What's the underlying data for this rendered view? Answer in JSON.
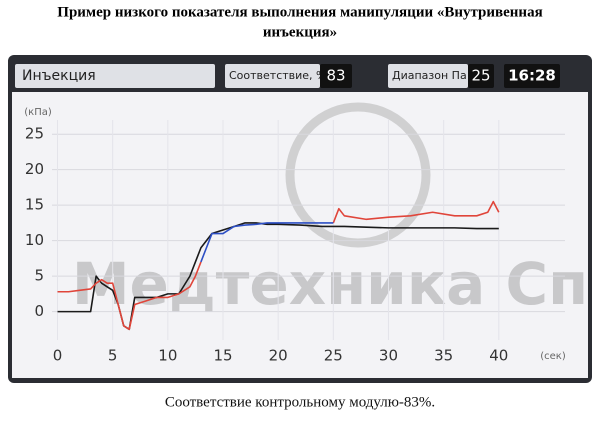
{
  "header": {
    "title": [
      "Пример низкого показателя выполнения манипуляции «Внутривенная",
      "инъекция»"
    ]
  },
  "screen": {
    "mode": "Инъекция",
    "match_label": "Соответствие, %",
    "match_value": 83,
    "range_label": "Диапазон Па",
    "range_value": 25,
    "time": "16:28",
    "watermark": "Медтехника Сп"
  },
  "chart_data": {
    "type": "line",
    "y_label": "(кПа)",
    "x_label": "(сек)",
    "x": [
      0,
      1,
      2,
      3,
      3.5,
      4,
      4.5,
      5,
      5.5,
      6,
      6.5,
      7,
      8,
      9,
      10,
      11,
      12,
      12.5,
      13,
      13.5,
      14,
      15,
      16,
      17,
      18,
      19,
      20,
      22,
      24,
      25,
      25.5,
      26,
      28,
      30,
      32,
      34,
      36,
      38,
      39,
      39.5,
      40
    ],
    "series": [
      {
        "color": "#1a1a1a",
        "values": [
          0,
          0,
          0,
          0,
          5,
          4,
          3.5,
          3,
          1,
          -2,
          -2.5,
          2,
          2,
          2,
          2.5,
          2.5,
          5,
          7,
          9,
          10,
          11,
          11.5,
          12,
          12.5,
          12.5,
          12.3,
          12.3,
          12.2,
          12,
          12,
          12,
          12,
          11.9,
          11.8,
          11.8,
          11.8,
          11.8,
          11.7,
          11.7,
          11.7,
          11.7
        ]
      },
      {
        "color": "#e0453a",
        "values": [
          2.8,
          2.8,
          3,
          3.2,
          4,
          4.5,
          4,
          4,
          1,
          -2,
          -2.5,
          1,
          1.5,
          2,
          2,
          2.5,
          3.5,
          5,
          7,
          null,
          null,
          null,
          null,
          null,
          null,
          null,
          null,
          null,
          null,
          12.5,
          14.5,
          13.5,
          13,
          13.3,
          13.5,
          14,
          13.5,
          13.5,
          14,
          15.5,
          14
        ]
      },
      {
        "color": "#2d4fc4",
        "values": [
          null,
          null,
          null,
          null,
          null,
          null,
          null,
          null,
          null,
          null,
          null,
          null,
          null,
          null,
          null,
          null,
          null,
          null,
          7,
          9,
          11,
          11,
          12,
          12.2,
          12.3,
          12.5,
          12.5,
          12.5,
          12.5,
          12.5,
          null,
          null,
          null,
          null,
          null,
          null,
          null,
          null,
          null,
          null,
          null
        ]
      }
    ],
    "xlim": [
      -0.5,
      46
    ],
    "ylim": [
      -4,
      27
    ],
    "xticks": [
      0,
      5,
      10,
      15,
      20,
      25,
      30,
      35,
      40
    ],
    "yticks": [
      0,
      5,
      10,
      15,
      20,
      25
    ],
    "grid": true
  },
  "caption": "Соответствие контрольному модулю-83%."
}
